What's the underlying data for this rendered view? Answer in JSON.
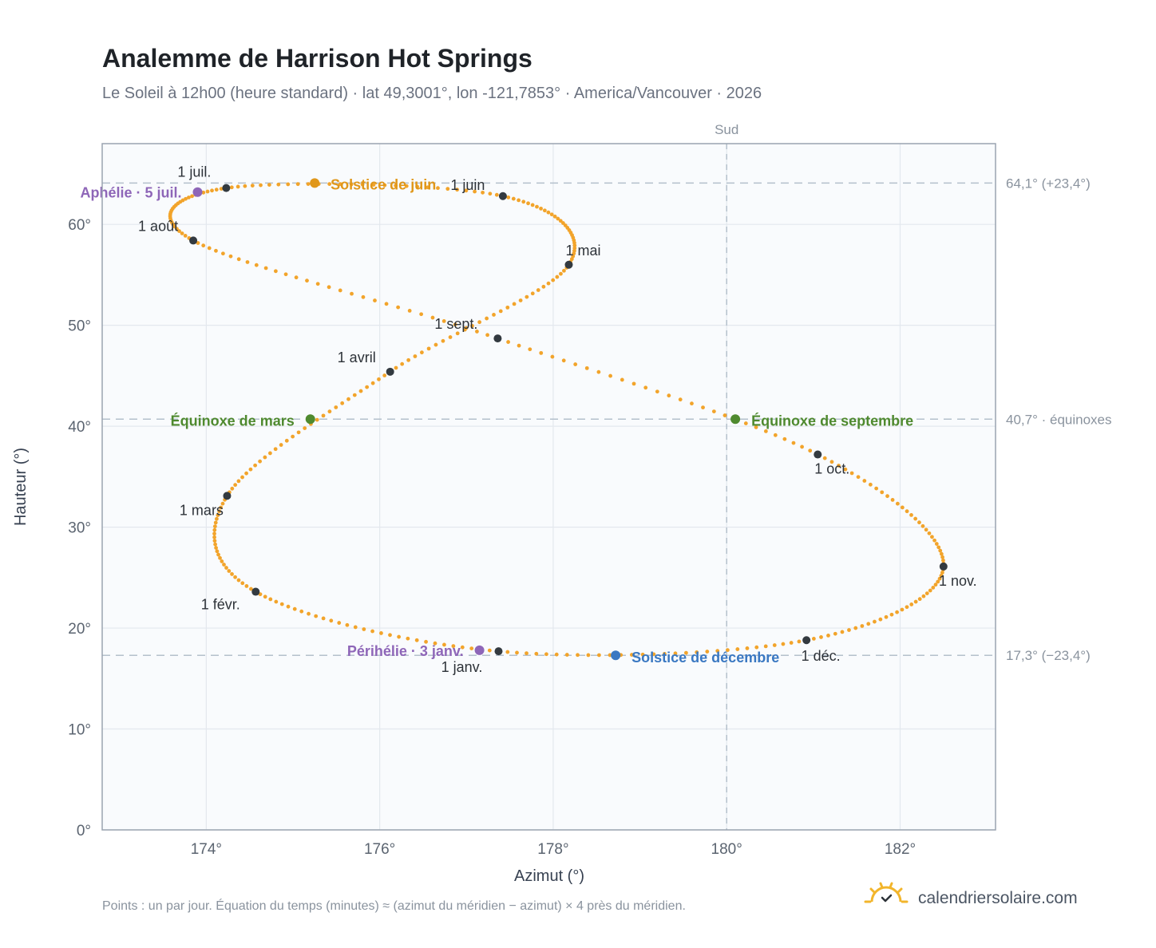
{
  "header": {
    "title": "Analemme de Harrison Hot Springs",
    "subtitle": "Le Soleil à 12h00 (heure standard) · lat 49,3001°, lon -121,7853° · America/Vancouver · 2026"
  },
  "footer": {
    "note": "Points : un par jour. Équation du temps (minutes) ≈ (azimut du méridien − azimut) × 4 près du méridien.",
    "brand": "calendriersolaire.com"
  },
  "colors": {
    "curve": "#f2a42b",
    "month_marker": "#333a40",
    "june_solstice": "#e0971a",
    "december_solstice": "#3a78c2",
    "equinox": "#4f8a2f",
    "apsis": "#8e66b8",
    "grid": "#e3e8ee",
    "plot_bg": "#f9fbfd",
    "frame": "#9aa4b0",
    "reference_line": "#b4c0cc"
  },
  "chart_data": {
    "type": "scatter",
    "xlabel": "Azimut (°)",
    "ylabel": "Hauteur (°)",
    "xlim": [
      172.8,
      183.1
    ],
    "ylim": [
      0,
      68
    ],
    "xticks": [
      174,
      176,
      178,
      180,
      182
    ],
    "xtick_labels": [
      "174°",
      "176°",
      "178°",
      "180°",
      "182°"
    ],
    "yticks": [
      0,
      10,
      20,
      30,
      40,
      50,
      60
    ],
    "ytick_labels": [
      "0°",
      "10°",
      "20°",
      "30°",
      "40°",
      "50°",
      "60°"
    ],
    "grid": true,
    "vertical_reference": {
      "x": 180,
      "label": "Sud"
    },
    "horizontal_references": [
      {
        "y": 64.1,
        "label": "64,1° (+23,4°)"
      },
      {
        "y": 40.7,
        "label": "40,7° · équinoxes"
      },
      {
        "y": 17.3,
        "label": "17,3° (−23,4°)"
      }
    ],
    "series_description": "one point per day",
    "month_markers": [
      {
        "label": "1 janv.",
        "azimuth": 177.37,
        "altitude": 17.7
      },
      {
        "label": "1 févr.",
        "azimuth": 174.57,
        "altitude": 23.6
      },
      {
        "label": "1 mars",
        "azimuth": 174.24,
        "altitude": 33.1
      },
      {
        "label": "1 avril",
        "azimuth": 176.12,
        "altitude": 45.4
      },
      {
        "label": "1 mai",
        "azimuth": 178.18,
        "altitude": 56.0
      },
      {
        "label": "1 juin",
        "azimuth": 177.42,
        "altitude": 62.8
      },
      {
        "label": "1 juil.",
        "azimuth": 174.23,
        "altitude": 63.6
      },
      {
        "label": "1 août",
        "azimuth": 173.85,
        "altitude": 58.4
      },
      {
        "label": "1 sept.",
        "azimuth": 177.36,
        "altitude": 48.7
      },
      {
        "label": "1 oct.",
        "azimuth": 181.05,
        "altitude": 37.2
      },
      {
        "label": "1 nov.",
        "azimuth": 182.5,
        "altitude": 26.1
      },
      {
        "label": "1 déc.",
        "azimuth": 180.92,
        "altitude": 18.8
      }
    ],
    "events": [
      {
        "label": "Solstice de juin",
        "azimuth": 175.25,
        "altitude": 64.1,
        "color_key": "june_solstice"
      },
      {
        "label": "Solstice de décembre",
        "azimuth": 178.72,
        "altitude": 17.3,
        "color_key": "december_solstice"
      },
      {
        "label": "Équinoxe de mars",
        "azimuth": 175.2,
        "altitude": 40.7,
        "color_key": "equinox"
      },
      {
        "label": "Équinoxe de septembre",
        "azimuth": 180.1,
        "altitude": 40.7,
        "color_key": "equinox"
      },
      {
        "label": "Aphélie · 5 juil.",
        "azimuth": 173.9,
        "altitude": 63.2,
        "color_key": "apsis"
      },
      {
        "label": "Périhélie · 3 janv.",
        "azimuth": 177.15,
        "altitude": 17.8,
        "color_key": "apsis"
      }
    ]
  }
}
